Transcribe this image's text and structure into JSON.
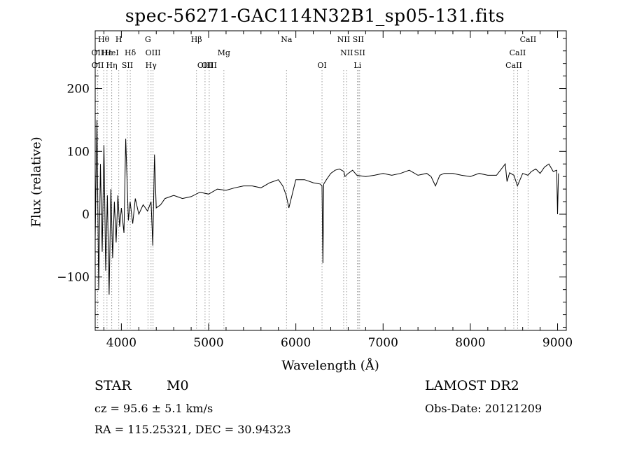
{
  "header": {
    "title": "spec-56271-GAC114N32B1_sp05-131.fits"
  },
  "footer": {
    "object_class": "STAR",
    "subclass": "M0",
    "survey": "LAMOST DR2",
    "redshift": "cz = 95.6 ± 5.1 km/s",
    "obs_date": "Obs-Date: 20121209",
    "radec": "RA = 115.25321, DEC =  30.94323"
  },
  "chart_data": {
    "type": "line",
    "xlabel": "Wavelength (Å)",
    "ylabel": "Flux (relative)",
    "xlim": [
      3700,
      9100
    ],
    "ylim": [
      -185,
      292
    ],
    "xticks": [
      4000,
      5000,
      6000,
      7000,
      8000,
      9000
    ],
    "xtick_labels": [
      "4000",
      "5000",
      "6000",
      "7000",
      "8000",
      "9000"
    ],
    "yticks": [
      -100,
      0,
      100,
      200
    ],
    "ytick_labels": [
      "−100",
      "0",
      "100",
      "200"
    ],
    "grid": false,
    "line_color": "#000000",
    "marker_color": "#999999",
    "series": [
      {
        "x": [
          3700,
          3720,
          3740,
          3760,
          3780,
          3800,
          3820,
          3840,
          3860,
          3880,
          3900,
          3920,
          3940,
          3960,
          3980,
          4000,
          4030,
          4050,
          4080,
          4100,
          4130,
          4160,
          4200,
          4250,
          4300,
          4340,
          4360,
          4380,
          4400,
          4450,
          4500,
          4600,
          4700,
          4800,
          4900,
          5000,
          5100,
          5200,
          5300,
          5400,
          5500,
          5600,
          5700,
          5800,
          5850,
          5890,
          5920,
          6000,
          6100,
          6200,
          6280,
          6300,
          6310,
          6320,
          6350,
          6400,
          6450,
          6500,
          6550,
          6563,
          6600,
          6650,
          6700,
          6800,
          6900,
          7000,
          7100,
          7200,
          7300,
          7400,
          7500,
          7550,
          7600,
          7650,
          7700,
          7800,
          7900,
          8000,
          8100,
          8200,
          8300,
          8400,
          8420,
          8450,
          8500,
          8540,
          8600,
          8660,
          8700,
          8750,
          8800,
          8850,
          8900,
          8950,
          8990,
          9000,
          9010
        ],
        "y": [
          -40,
          150,
          -120,
          80,
          -60,
          110,
          -90,
          30,
          -128,
          40,
          -70,
          20,
          -45,
          30,
          -20,
          10,
          -30,
          120,
          -10,
          20,
          -15,
          25,
          0,
          15,
          5,
          20,
          -50,
          95,
          10,
          15,
          25,
          30,
          25,
          28,
          35,
          32,
          40,
          38,
          42,
          45,
          45,
          42,
          50,
          55,
          45,
          30,
          10,
          55,
          55,
          50,
          48,
          45,
          -78,
          48,
          55,
          65,
          70,
          72,
          68,
          60,
          65,
          70,
          62,
          60,
          62,
          65,
          62,
          65,
          70,
          62,
          65,
          60,
          45,
          62,
          65,
          65,
          62,
          60,
          65,
          62,
          62,
          80,
          52,
          66,
          62,
          45,
          65,
          62,
          68,
          72,
          65,
          75,
          80,
          68,
          70,
          0,
          65
        ]
      }
    ],
    "lines_top": [
      {
        "label": "Hθ",
        "x": 3798
      },
      {
        "label": "H",
        "x": 3970
      },
      {
        "label": "G",
        "x": 4305
      },
      {
        "label": "Hβ",
        "x": 4861
      },
      {
        "label": "Na",
        "x": 5893
      },
      {
        "label": "NII",
        "x": 6548
      },
      {
        "label": "SII",
        "x": 6716
      },
      {
        "label": "CaII",
        "x": 8662
      }
    ],
    "lines_mid": [
      {
        "label": "OII",
        "x": 3727
      },
      {
        "label": "Hε",
        "x": 3835
      },
      {
        "label": "HeI",
        "x": 3889
      },
      {
        "label": "Hδ",
        "x": 4102
      },
      {
        "label": "OIII",
        "x": 4363
      },
      {
        "label": "Mg",
        "x": 5175
      },
      {
        "label": "NII",
        "x": 6583
      },
      {
        "label": "SII",
        "x": 6731
      },
      {
        "label": "CaII",
        "x": 8542
      }
    ],
    "lines_bot": [
      {
        "label": "OII",
        "x": 3729
      },
      {
        "label": "Hη",
        "x": 3889
      },
      {
        "label": "SII",
        "x": 4069
      },
      {
        "label": "Hγ",
        "x": 4340
      },
      {
        "label": "OIII",
        "x": 4959
      },
      {
        "label": "OIII",
        "x": 5007
      },
      {
        "label": "OI",
        "x": 6300
      },
      {
        "label": "Li",
        "x": 6707
      },
      {
        "label": "CaII",
        "x": 8498
      }
    ]
  }
}
